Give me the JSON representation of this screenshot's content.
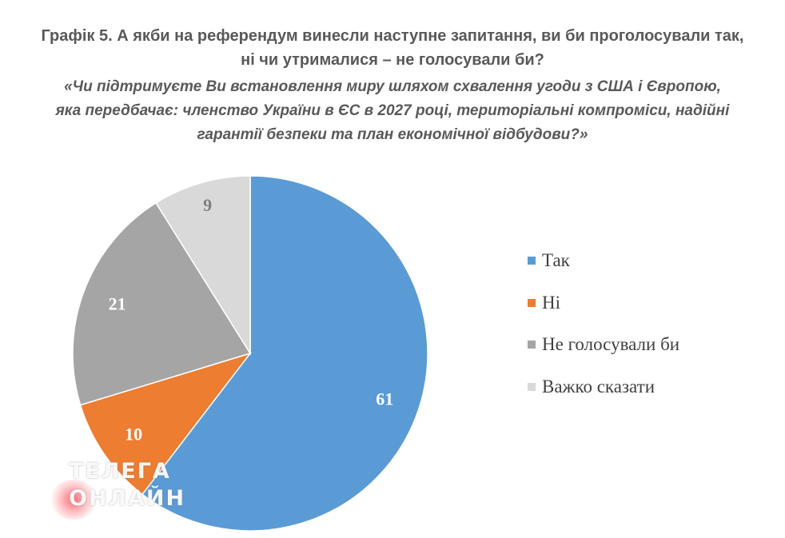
{
  "chart_data": {
    "type": "pie",
    "title": "Графік 5. А якби на референдум винесли наступне запитання, ви би проголосували так, ні чи утрималися – не голосували би?",
    "title_lines": [
      "Графік 5. А якби на референдум винесли наступне запитання, ви би проголосували так,",
      "ні чи утрималися – не голосували би?"
    ],
    "subtitle": "«Чи підтримуєте Ви встановлення миру шляхом схвалення угоди з США і Європою, яка передбачає: членство України в ЄС в 2027 році, територіальні компроміси, надійні гарантії безпеки та план економічної відбудови?»",
    "subtitle_lines": [
      "«Чи підтримуєте Ви встановлення миру шляхом схвалення угоди з США і Європою,",
      "яка передбачає: членство України в ЄС в 2027 році, територіальні компроміси, надійні",
      "гарантії безпеки та план економічної відбудови?»"
    ],
    "categories": [
      "Так",
      "Ні",
      "Не голосували би",
      "Важко сказати"
    ],
    "values": [
      61,
      10,
      21,
      9
    ],
    "data_labels": [
      "61",
      "10",
      "21",
      "9"
    ],
    "colors": [
      "#5B9BD5",
      "#ED7D31",
      "#A5A5A5",
      "#D9D9D9"
    ],
    "label_colors": [
      "#ffffff",
      "#ffffff",
      "#ffffff",
      "#7f7f7f"
    ],
    "start": "top",
    "direction": "clockwise",
    "legend_position": "right"
  },
  "watermark": {
    "line1": "ТЕЛЕГА",
    "line2": "ОНЛАЙН"
  }
}
